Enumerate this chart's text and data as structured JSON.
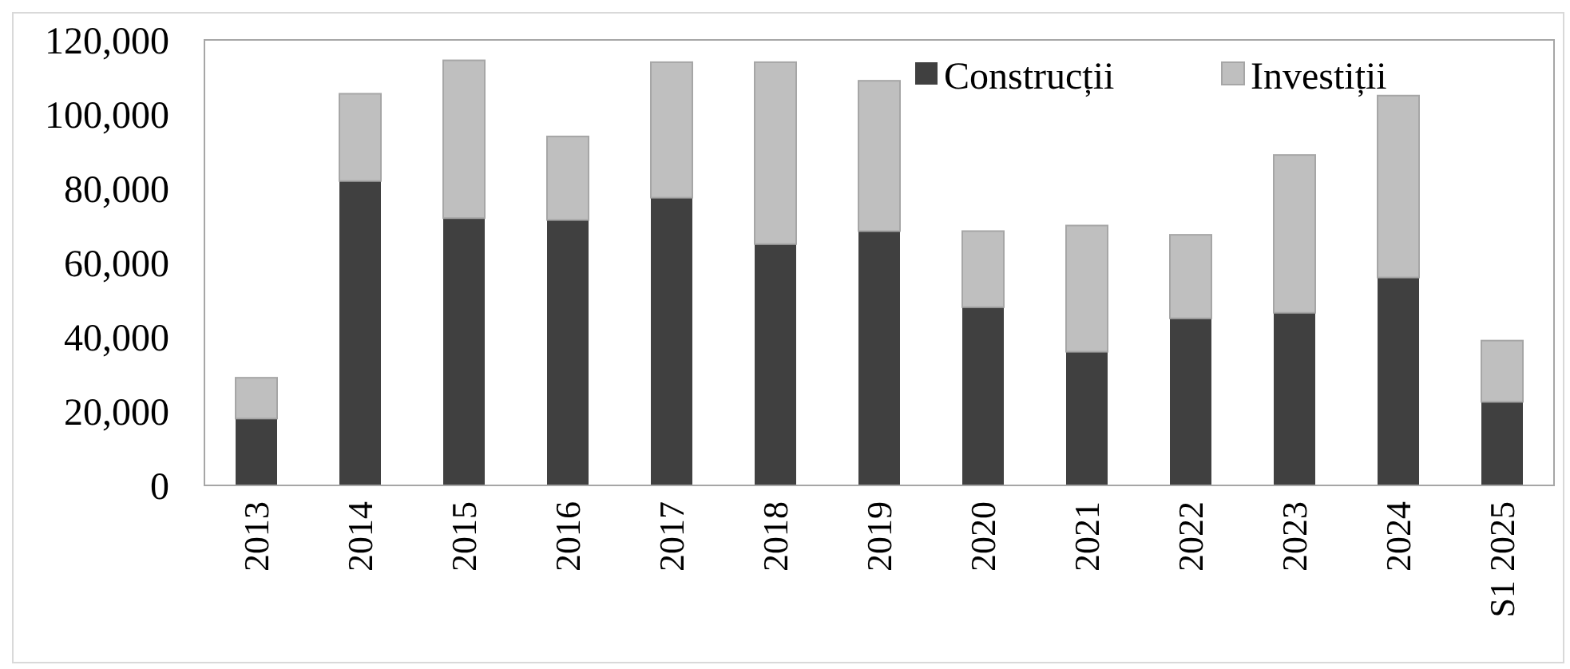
{
  "chart_data": {
    "type": "bar",
    "stacked": true,
    "categories": [
      "2013",
      "2014",
      "2015",
      "2016",
      "2017",
      "2018",
      "2019",
      "2020",
      "2021",
      "2022",
      "2023",
      "2024",
      "S1 2025"
    ],
    "series": [
      {
        "name": "Construcții",
        "color": "#404040",
        "values": [
          18000,
          82000,
          72000,
          71500,
          77500,
          65000,
          68500,
          48000,
          36000,
          45000,
          46500,
          56000,
          22500
        ]
      },
      {
        "name": "Investiții",
        "color": "#bfbfbf",
        "values": [
          11000,
          23500,
          42500,
          22500,
          36500,
          49000,
          40500,
          20500,
          34000,
          22500,
          42500,
          49000,
          16500
        ]
      }
    ],
    "ylim": [
      0,
      120000
    ],
    "yticks": [
      {
        "value": 0,
        "label": "0"
      },
      {
        "value": 20000,
        "label": "20,000"
      },
      {
        "value": 40000,
        "label": "40,000"
      },
      {
        "value": 60000,
        "label": "60,000"
      },
      {
        "value": 80000,
        "label": "80,000"
      },
      {
        "value": 100000,
        "label": "100,000"
      },
      {
        "value": 120000,
        "label": "120,000"
      }
    ],
    "grid": false,
    "legend": "top right"
  }
}
